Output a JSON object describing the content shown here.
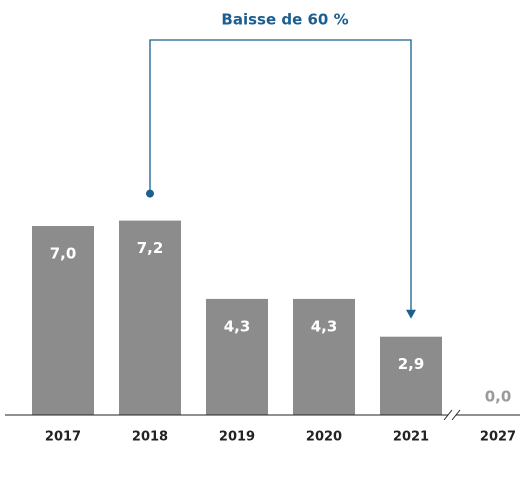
{
  "chart_data": {
    "type": "bar",
    "annotation": "Baisse de 60 %",
    "categories": [
      "2017",
      "2018",
      "2019",
      "2020",
      "2021",
      "2027"
    ],
    "values": [
      7.0,
      7.2,
      4.3,
      4.3,
      2.9,
      0.0
    ],
    "value_labels": [
      "7,0",
      "7,2",
      "4,3",
      "4,3",
      "2,9",
      "0,0"
    ],
    "color": "#8c8c8c",
    "annotation_color": "#1a5f8f",
    "ylim": [
      0,
      8
    ]
  }
}
